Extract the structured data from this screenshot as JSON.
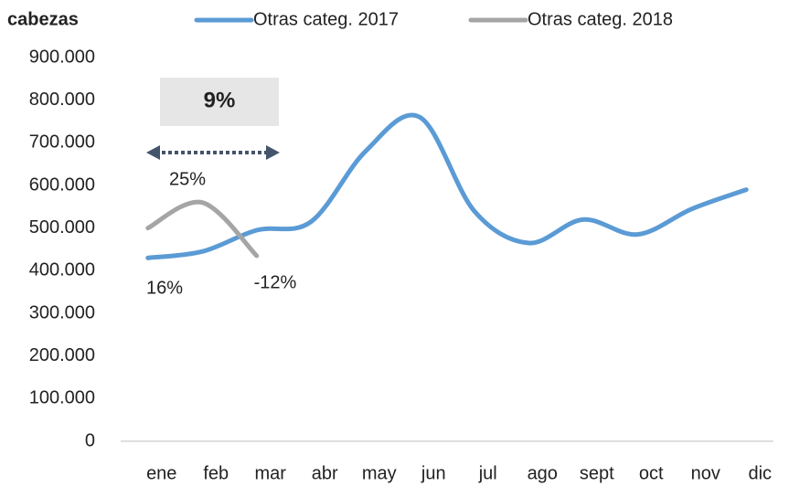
{
  "chart_data": {
    "type": "line",
    "y_label": "cabezas",
    "categories": [
      "ene",
      "feb",
      "mar",
      "abr",
      "may",
      "jun",
      "jul",
      "ago",
      "sept",
      "oct",
      "nov",
      "dic"
    ],
    "series": [
      {
        "name": "Otras categ. 2017",
        "color": "#5b9bd5",
        "values": [
          430000,
          445000,
          495000,
          515000,
          680000,
          760000,
          540000,
          465000,
          520000,
          485000,
          545000,
          590000
        ]
      },
      {
        "name": "Otras categ. 2018",
        "color": "#a5a5a5",
        "values": [
          500000,
          560000,
          435000,
          null,
          null,
          null,
          null,
          null,
          null,
          null,
          null,
          null
        ]
      }
    ],
    "ylim": [
      0,
      900000
    ],
    "yticks": [
      0,
      {
        "value": 100000,
        "label": "100.000"
      },
      {
        "value": 200000,
        "label": "200.000"
      },
      {
        "value": 300000,
        "label": "300.000"
      },
      {
        "value": 400000,
        "label": "400.000"
      },
      {
        "value": 500000,
        "label": "500.000"
      },
      {
        "value": 600000,
        "label": "600.000"
      },
      {
        "value": 700000,
        "label": "700.000"
      },
      {
        "value": 800000,
        "label": "800.000"
      },
      {
        "value": 900000,
        "label": "900.000"
      }
    ],
    "annotations": [
      "16%",
      "25%",
      "-12%",
      "9%"
    ],
    "smooth": true,
    "legend": "top"
  }
}
